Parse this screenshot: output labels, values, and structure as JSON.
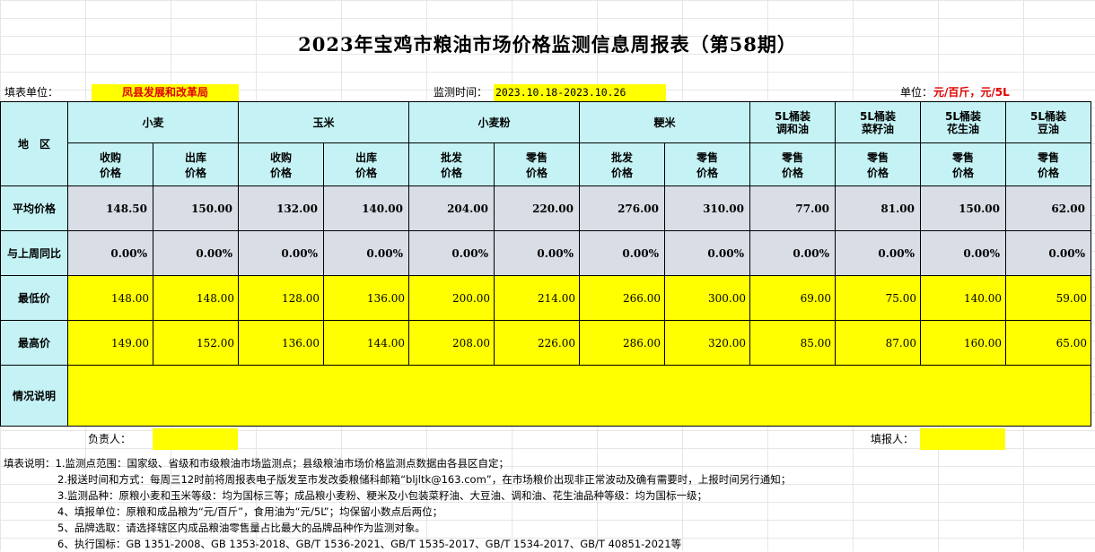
{
  "title": "2023年宝鸡市粮油市场价格监测信息周报表（第58期）",
  "info": {
    "unit_label": "填表单位：",
    "unit_value": "凤县发展和改革局",
    "period_label": "监测时间：",
    "period_value": "2023.10.18-2023.10.26",
    "price_unit_label": "单位：",
    "price_unit_value": "元/百斤，元/5L"
  },
  "table": {
    "region_header": "地　区",
    "groups": [
      "小麦",
      "玉米",
      "小麦粉",
      "粳米"
    ],
    "oil_groups": [
      {
        "l1": "5L桶装",
        "l2": "调和油"
      },
      {
        "l1": "5L桶装",
        "l2": "菜籽油"
      },
      {
        "l1": "5L桶装",
        "l2": "花生油"
      },
      {
        "l1": "5L桶装",
        "l2": "豆油"
      }
    ],
    "subheaders": [
      {
        "l1": "收购",
        "l2": "价格"
      },
      {
        "l1": "出库",
        "l2": "价格"
      },
      {
        "l1": "收购",
        "l2": "价格"
      },
      {
        "l1": "出库",
        "l2": "价格"
      },
      {
        "l1": "批发",
        "l2": "价格"
      },
      {
        "l1": "零售",
        "l2": "价格"
      },
      {
        "l1": "批发",
        "l2": "价格"
      },
      {
        "l1": "零售",
        "l2": "价格"
      },
      {
        "l1": "零售",
        "l2": "价格"
      },
      {
        "l1": "零售",
        "l2": "价格"
      },
      {
        "l1": "零售",
        "l2": "价格"
      },
      {
        "l1": "零售",
        "l2": "价格"
      }
    ],
    "rows": [
      {
        "label": "平均价格",
        "values": [
          "148.50",
          "150.00",
          "132.00",
          "140.00",
          "204.00",
          "220.00",
          "276.00",
          "310.00",
          "77.00",
          "81.00",
          "150.00",
          "62.00"
        ]
      },
      {
        "label": "与上周同比",
        "values": [
          "0.00%",
          "0.00%",
          "0.00%",
          "0.00%",
          "0.00%",
          "0.00%",
          "0.00%",
          "0.00%",
          "0.00%",
          "0.00%",
          "0.00%",
          "0.00%"
        ]
      },
      {
        "label": "最低价",
        "values": [
          "148.00",
          "148.00",
          "128.00",
          "136.00",
          "200.00",
          "214.00",
          "266.00",
          "300.00",
          "69.00",
          "75.00",
          "140.00",
          "59.00"
        ]
      },
      {
        "label": "最高价",
        "values": [
          "149.00",
          "152.00",
          "136.00",
          "144.00",
          "208.00",
          "226.00",
          "286.00",
          "320.00",
          "85.00",
          "87.00",
          "160.00",
          "65.00"
        ]
      }
    ],
    "remarks_label": "情况说明",
    "remarks_value": ""
  },
  "signatures": {
    "owner_label": "负责人：",
    "owner_value": "",
    "filler_label": "填报人：",
    "filler_value": ""
  },
  "notes": [
    "填表说明：1.监测点范围：国家级、省级和市级粮油市场监测点；县级粮油市场价格监测点数据由各县区自定；",
    "2.报送时间和方式：每周三12时前将周报表电子版发至市发改委粮储科邮箱“bljltk@163.com”，在市场粮价出现非正常波动及确有需要时，上报时间另行通知；",
    "3.监测品种：原粮小麦和玉米等级：均为国标三等；成品粮小麦粉、粳米及小包装菜籽油、大豆油、调和油、花生油品种等级：均为国标一级；",
    "4、填报单位：原粮和成品粮为“元/百斤”，食用油为“元/5L”；均保留小数点后两位；",
    "5、品牌选取：请选择辖区内成品粮油零售量占比最大的品牌品种作为监测对象。",
    "6、执行国标：GB 1351-2008、GB 1353-2018、GB/T 1536-2021、GB/T 1535-2017、GB/T 1534-2017、GB/T 40851-2021等"
  ]
}
